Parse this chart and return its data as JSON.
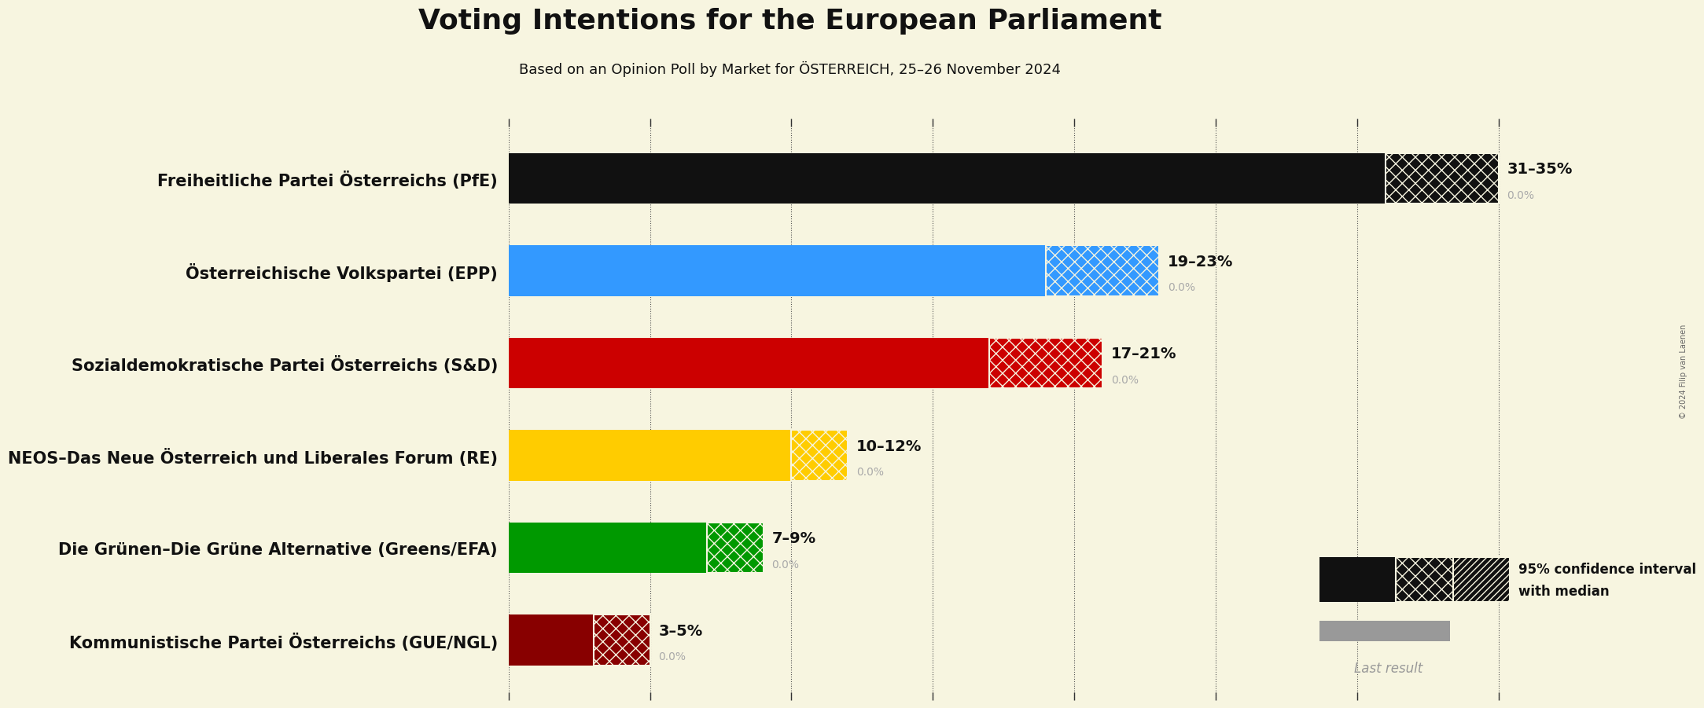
{
  "title": "Voting Intentions for the European Parliament",
  "subtitle": "Based on an Opinion Poll by Market for ÖSTERREICH, 25–26 November 2024",
  "background_color": "#f7f5e0",
  "parties": [
    {
      "name": "Freiheitliche Partei Österreichs (PfE)",
      "low": 31,
      "high": 35,
      "median": 31,
      "last_result": 0.0,
      "color": "#111111",
      "label": "31–35%"
    },
    {
      "name": "Österreichische Volkspartei (EPP)",
      "low": 19,
      "high": 23,
      "median": 19,
      "last_result": 0.0,
      "color": "#3399ff",
      "label": "19–23%"
    },
    {
      "name": "Sozialdemokratische Partei Österreichs (S&D)",
      "low": 17,
      "high": 21,
      "median": 17,
      "last_result": 0.0,
      "color": "#cc0000",
      "label": "17–21%"
    },
    {
      "name": "NEOS–Das Neue Österreich und Liberales Forum (RE)",
      "low": 10,
      "high": 12,
      "median": 10,
      "last_result": 0.0,
      "color": "#ffcc00",
      "label": "10–12%"
    },
    {
      "name": "Die Grünen–Die Grüne Alternative (Greens/EFA)",
      "low": 7,
      "high": 9,
      "median": 7,
      "last_result": 0.0,
      "color": "#009900",
      "label": "7–9%"
    },
    {
      "name": "Kommunistische Partei Österreichs (GUE/NGL)",
      "low": 3,
      "high": 5,
      "median": 3,
      "last_result": 0.0,
      "color": "#880000",
      "label": "3–5%"
    }
  ],
  "xlim_max": 36,
  "grid_ticks": [
    0,
    5,
    10,
    15,
    20,
    25,
    30,
    35
  ],
  "party_label_fontsize": 15,
  "range_label_fontsize": 14,
  "last_result_label_fontsize": 10,
  "title_fontsize": 26,
  "subtitle_fontsize": 13,
  "bar_height": 0.55,
  "copyright_text": "© 2024 Filip van Laenen",
  "last_result_color": "#999999",
  "legend_ci_text1": "95% confidence interval",
  "legend_ci_text2": "with median",
  "legend_last_result_text": "Last result",
  "hatch_pattern": "xx",
  "hatch_edge_color": "#f7f5e0",
  "grid_color": "#555555",
  "grid_linestyle": ":",
  "grid_linewidth": 0.8
}
